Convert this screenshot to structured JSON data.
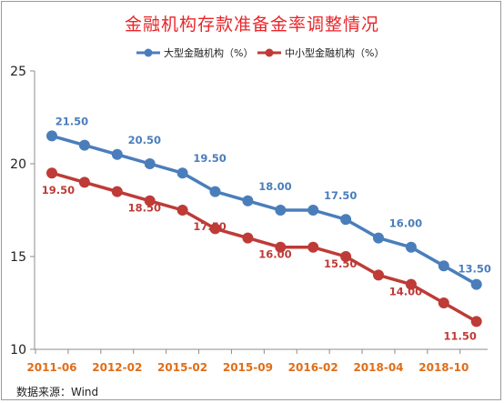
{
  "chart_data": {
    "type": "line",
    "title": "金融机构存款准备金率调整情况",
    "source": "数据来源：Wind",
    "ylim": [
      10,
      25
    ],
    "yticks": [
      10,
      15,
      20,
      25
    ],
    "grid": false,
    "legend_position": "top",
    "categories": [
      "2011-06",
      "",
      "2012-02",
      "",
      "2015-02",
      "",
      "2015-09",
      "",
      "2016-02",
      "",
      "2018-04",
      "",
      "2018-10",
      ""
    ],
    "series": [
      {
        "name": "大型金融机构（%）",
        "color": "#4a7ebb",
        "values": [
          21.5,
          21.0,
          20.5,
          20.0,
          19.5,
          18.5,
          18.0,
          17.5,
          17.5,
          17.0,
          16.0,
          15.5,
          14.5,
          13.5
        ],
        "labels": [
          {
            "index": 0,
            "text": "21.50"
          },
          {
            "index": 2,
            "text": "20.50"
          },
          {
            "index": 4,
            "text": "19.50"
          },
          {
            "index": 6,
            "text": "18.00"
          },
          {
            "index": 8,
            "text": "17.50"
          },
          {
            "index": 10,
            "text": "16.00"
          },
          {
            "index": 13,
            "text": "13.50"
          }
        ]
      },
      {
        "name": "中小型金融机构（%）",
        "color": "#be3b37",
        "values": [
          19.5,
          19.0,
          18.5,
          18.0,
          17.5,
          16.5,
          16.0,
          15.5,
          15.5,
          15.0,
          14.0,
          13.5,
          12.5,
          11.5
        ],
        "labels": [
          {
            "index": 0,
            "text": "19.50"
          },
          {
            "index": 2,
            "text": "18.50"
          },
          {
            "index": 4,
            "text": "17.50"
          },
          {
            "index": 6,
            "text": "16.00"
          },
          {
            "index": 8,
            "text": "15.50"
          },
          {
            "index": 10,
            "text": "14.00"
          },
          {
            "index": 13,
            "text": "11.50"
          }
        ]
      }
    ]
  }
}
